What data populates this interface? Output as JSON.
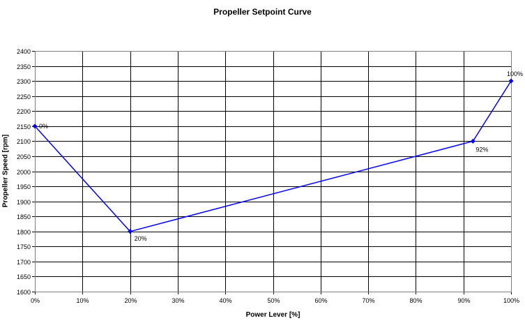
{
  "chart_data": {
    "type": "line",
    "title": "Propeller Setpoint Curve",
    "xlabel": "Power Lever [%]",
    "ylabel": "Propeller Speed [rpm]",
    "xlim": [
      0,
      100
    ],
    "ylim": [
      1600,
      2400
    ],
    "x_ticks": [
      "0%",
      "10%",
      "20%",
      "30%",
      "40%",
      "50%",
      "60%",
      "70%",
      "80%",
      "90%",
      "100%"
    ],
    "y_ticks": [
      "1600",
      "1650",
      "1700",
      "1750",
      "1800",
      "1850",
      "1900",
      "1950",
      "2000",
      "2050",
      "2100",
      "2150",
      "2200",
      "2250",
      "2300",
      "2350",
      "2400"
    ],
    "grid": true,
    "legend": "none",
    "series": [
      {
        "color": "#0000ff",
        "points": [
          {
            "x": 0,
            "y": 2150,
            "label": "0%"
          },
          {
            "x": 20,
            "y": 1800,
            "label": "20%"
          },
          {
            "x": 92,
            "y": 2100,
            "label": "92%"
          },
          {
            "x": 100,
            "y": 2300,
            "label": "100%"
          }
        ]
      }
    ]
  }
}
